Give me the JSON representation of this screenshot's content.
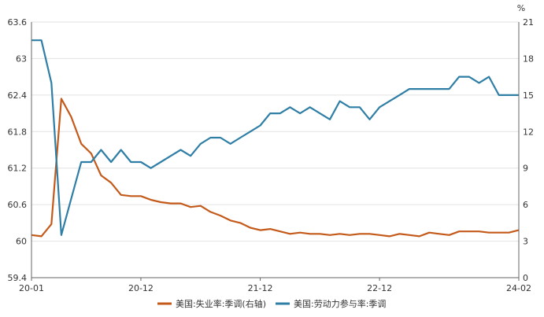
{
  "chart_data": {
    "type": "line",
    "x": [
      "20-01",
      "20-02",
      "20-03",
      "20-04",
      "20-05",
      "20-06",
      "20-07",
      "20-08",
      "20-09",
      "20-10",
      "20-11",
      "20-12",
      "21-01",
      "21-02",
      "21-03",
      "21-04",
      "21-05",
      "21-06",
      "21-07",
      "21-08",
      "21-09",
      "21-10",
      "21-11",
      "21-12",
      "22-01",
      "22-02",
      "22-03",
      "22-04",
      "22-05",
      "22-06",
      "22-07",
      "22-08",
      "22-09",
      "22-10",
      "22-11",
      "22-12",
      "23-01",
      "23-02",
      "23-03",
      "23-04",
      "23-05",
      "23-06",
      "23-07",
      "23-08",
      "23-09",
      "23-10",
      "23-11",
      "23-12",
      "24-01",
      "24-02"
    ],
    "x_ticks": [
      "20-01",
      "20-12",
      "21-12",
      "22-12",
      "24-02"
    ],
    "y_left": {
      "range": [
        59.4,
        63.6
      ],
      "ticks": [
        "59.4",
        "60",
        "60.6",
        "61.2",
        "61.8",
        "62.4",
        "63",
        "63.6"
      ]
    },
    "y_right": {
      "range": [
        0,
        21
      ],
      "ticks": [
        "0",
        "3",
        "6",
        "9",
        "12",
        "15",
        "18",
        "21"
      ],
      "unit": "%"
    },
    "series": [
      {
        "name": "美国:失业率:季调(右轴)",
        "axis": "right",
        "color": "#c45a1a",
        "values": [
          3.5,
          3.4,
          4.4,
          14.7,
          13.2,
          11.0,
          10.2,
          8.4,
          7.8,
          6.8,
          6.7,
          6.7,
          6.4,
          6.2,
          6.1,
          6.1,
          5.8,
          5.9,
          5.4,
          5.1,
          4.7,
          4.5,
          4.1,
          3.9,
          4.0,
          3.8,
          3.6,
          3.7,
          3.6,
          3.6,
          3.5,
          3.6,
          3.5,
          3.6,
          3.6,
          3.5,
          3.4,
          3.6,
          3.5,
          3.4,
          3.7,
          3.6,
          3.5,
          3.8,
          3.8,
          3.8,
          3.7,
          3.7,
          3.7,
          3.9
        ]
      },
      {
        "name": "美国:劳动力参与率:季调",
        "axis": "left",
        "color": "#2e7ea5",
        "values": [
          63.3,
          63.3,
          62.6,
          60.1,
          60.7,
          61.3,
          61.3,
          61.5,
          61.3,
          61.5,
          61.3,
          61.3,
          61.2,
          61.3,
          61.4,
          61.5,
          61.4,
          61.6,
          61.7,
          61.7,
          61.6,
          61.7,
          61.8,
          61.9,
          62.1,
          62.1,
          62.2,
          62.1,
          62.2,
          62.1,
          62.0,
          62.3,
          62.2,
          62.2,
          62.0,
          62.2,
          62.3,
          62.4,
          62.5,
          62.5,
          62.5,
          62.5,
          62.5,
          62.7,
          62.7,
          62.6,
          62.7,
          62.4,
          62.4,
          62.4
        ]
      }
    ],
    "legend": "bottom"
  }
}
